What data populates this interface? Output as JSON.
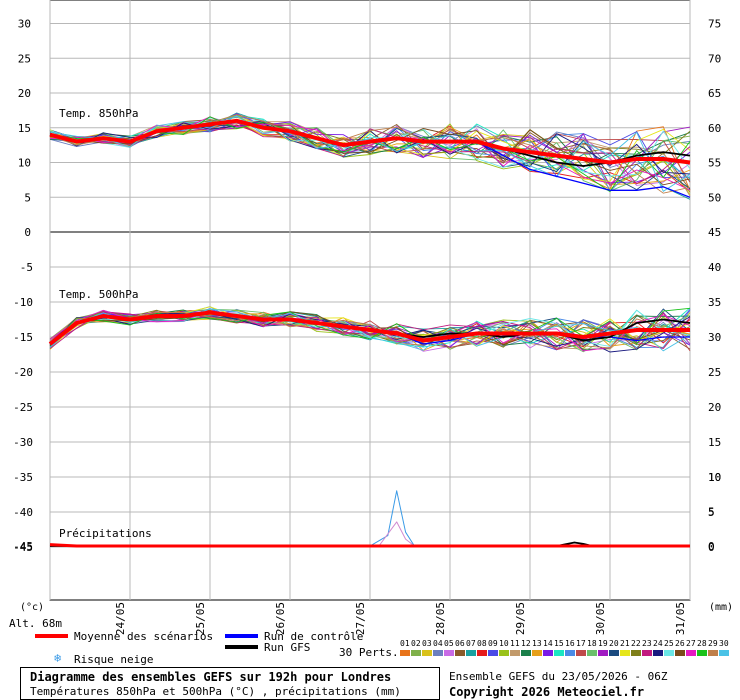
{
  "chart_data": {
    "type": "line",
    "x_dates": [
      "24/05",
      "25/05",
      "26/05",
      "27/05",
      "28/05",
      "29/05",
      "30/05",
      "31/05"
    ],
    "panels": [
      {
        "label": "Temp. 850hPa",
        "left_ticks": [
          "30",
          "25",
          "20",
          "15",
          "10",
          "5",
          "0"
        ],
        "right_ticks": [
          "75",
          "70",
          "65",
          "60",
          "55",
          "50",
          "45"
        ],
        "ylim": [
          0,
          33
        ],
        "mean": [
          [
            0,
            14
          ],
          [
            3,
            13
          ],
          [
            6,
            13.5
          ],
          [
            9,
            13
          ],
          [
            12,
            14.5
          ],
          [
            15,
            15
          ],
          [
            18,
            15.5
          ],
          [
            21,
            16
          ],
          [
            24,
            15
          ],
          [
            27,
            14.5
          ],
          [
            30,
            13.5
          ],
          [
            33,
            12.5
          ],
          [
            36,
            13
          ],
          [
            39,
            13.5
          ],
          [
            42,
            13
          ],
          [
            45,
            13
          ],
          [
            48,
            13
          ],
          [
            51,
            12
          ],
          [
            54,
            11.5
          ],
          [
            57,
            11
          ],
          [
            60,
            10.5
          ],
          [
            63,
            10
          ],
          [
            66,
            10.5
          ],
          [
            69,
            10.5
          ],
          [
            72,
            10
          ]
        ],
        "control": [
          [
            0,
            14
          ],
          [
            3,
            13
          ],
          [
            6,
            13.5
          ],
          [
            9,
            13
          ],
          [
            12,
            14.5
          ],
          [
            15,
            15
          ],
          [
            18,
            15.5
          ],
          [
            21,
            16
          ],
          [
            24,
            15
          ],
          [
            27,
            14.5
          ],
          [
            30,
            13.5
          ],
          [
            33,
            12.5
          ],
          [
            36,
            13
          ],
          [
            39,
            13.5
          ],
          [
            42,
            13
          ],
          [
            45,
            13
          ],
          [
            48,
            13
          ],
          [
            51,
            11
          ],
          [
            54,
            9
          ],
          [
            57,
            8
          ],
          [
            60,
            7
          ],
          [
            63,
            6
          ],
          [
            66,
            6
          ],
          [
            69,
            6.5
          ],
          [
            72,
            5
          ]
        ],
        "gfs": [
          [
            0,
            14
          ],
          [
            3,
            13
          ],
          [
            6,
            13.5
          ],
          [
            9,
            13
          ],
          [
            12,
            14.5
          ],
          [
            15,
            15
          ],
          [
            18,
            15.5
          ],
          [
            21,
            16
          ],
          [
            24,
            15
          ],
          [
            27,
            14.5
          ],
          [
            30,
            13.5
          ],
          [
            33,
            12.5
          ],
          [
            36,
            13
          ],
          [
            39,
            13.5
          ],
          [
            42,
            13
          ],
          [
            45,
            13
          ],
          [
            48,
            13
          ],
          [
            51,
            12
          ],
          [
            54,
            11
          ],
          [
            57,
            10
          ],
          [
            60,
            9.5
          ],
          [
            63,
            10
          ],
          [
            66,
            11
          ],
          [
            69,
            11.5
          ],
          [
            72,
            11
          ]
        ]
      },
      {
        "label": "Temp. 500hPa",
        "left_ticks": [
          "-5",
          "-10",
          "-15",
          "-20",
          "-25",
          "-30",
          "-35",
          "-40",
          "-45"
        ],
        "right_ticks": [
          "40",
          "35",
          "30",
          "25",
          "20",
          "15",
          "10",
          "5",
          "0"
        ],
        "ylim": [
          -46,
          0
        ],
        "mean": [
          [
            0,
            -16
          ],
          [
            3,
            -13
          ],
          [
            6,
            -12
          ],
          [
            9,
            -12.5
          ],
          [
            12,
            -12
          ],
          [
            15,
            -12
          ],
          [
            18,
            -11.5
          ],
          [
            21,
            -12
          ],
          [
            24,
            -12.5
          ],
          [
            27,
            -12.5
          ],
          [
            30,
            -13
          ],
          [
            33,
            -13.5
          ],
          [
            36,
            -14
          ],
          [
            39,
            -14.5
          ],
          [
            42,
            -15.5
          ],
          [
            45,
            -15
          ],
          [
            48,
            -14.5
          ],
          [
            51,
            -14.5
          ],
          [
            54,
            -14.5
          ],
          [
            57,
            -14.5
          ],
          [
            60,
            -15
          ],
          [
            63,
            -14.5
          ],
          [
            66,
            -14
          ],
          [
            69,
            -14
          ],
          [
            72,
            -14
          ]
        ],
        "control": [
          [
            0,
            -16
          ],
          [
            3,
            -13
          ],
          [
            6,
            -12
          ],
          [
            9,
            -12.5
          ],
          [
            12,
            -12
          ],
          [
            15,
            -12
          ],
          [
            18,
            -11.5
          ],
          [
            21,
            -12
          ],
          [
            24,
            -12.5
          ],
          [
            27,
            -12.5
          ],
          [
            30,
            -13
          ],
          [
            33,
            -13.5
          ],
          [
            36,
            -14
          ],
          [
            39,
            -14.5
          ],
          [
            42,
            -16
          ],
          [
            45,
            -15.5
          ],
          [
            48,
            -14.5
          ],
          [
            51,
            -14.5
          ],
          [
            54,
            -14.5
          ],
          [
            57,
            -14.5
          ],
          [
            60,
            -15
          ],
          [
            63,
            -15
          ],
          [
            66,
            -15.5
          ],
          [
            69,
            -15
          ],
          [
            72,
            -15
          ]
        ],
        "gfs": [
          [
            0,
            -16
          ],
          [
            3,
            -13
          ],
          [
            6,
            -12
          ],
          [
            9,
            -12.5
          ],
          [
            12,
            -12
          ],
          [
            15,
            -12
          ],
          [
            18,
            -11.5
          ],
          [
            21,
            -12
          ],
          [
            24,
            -12.5
          ],
          [
            27,
            -12.5
          ],
          [
            30,
            -13
          ],
          [
            33,
            -13.5
          ],
          [
            36,
            -14
          ],
          [
            39,
            -14.5
          ],
          [
            42,
            -15
          ],
          [
            45,
            -14.5
          ],
          [
            48,
            -14.5
          ],
          [
            51,
            -15
          ],
          [
            54,
            -14.5
          ],
          [
            57,
            -14.5
          ],
          [
            60,
            -15.5
          ],
          [
            63,
            -15
          ],
          [
            66,
            -13
          ],
          [
            69,
            -12.5
          ],
          [
            72,
            -13
          ]
        ]
      }
    ],
    "precip": {
      "label": "Précipitations",
      "right_ticks": [
        "10",
        "5",
        "0"
      ],
      "left_tick": "-45",
      "ylim": [
        0,
        11
      ],
      "mean": [
        [
          0,
          0.2
        ],
        [
          3,
          0
        ],
        [
          60,
          0
        ],
        [
          72,
          0
        ]
      ],
      "spike_member": [
        [
          36,
          0
        ],
        [
          38,
          1.5
        ],
        [
          39,
          8
        ],
        [
          40,
          2
        ],
        [
          41,
          0
        ]
      ],
      "spike_member2": [
        [
          37,
          0
        ],
        [
          39,
          3.5
        ],
        [
          40,
          1
        ],
        [
          41,
          0
        ]
      ],
      "gfs": [
        [
          0,
          0
        ],
        [
          57,
          0
        ],
        [
          59,
          0.5
        ],
        [
          60,
          0.3
        ],
        [
          61,
          0
        ],
        [
          72,
          0
        ]
      ]
    },
    "members_count": 30,
    "member_colors": [
      "#e8741a",
      "#7fb04a",
      "#d9c21a",
      "#6b7fbf",
      "#c86be6",
      "#8a5a2a",
      "#1aa0a0",
      "#e61a1a",
      "#4a4ae6",
      "#9ac21a",
      "#c29a6b",
      "#1a7f4a",
      "#e6a01a",
      "#7a1ae6",
      "#1ae6c2",
      "#4a8ae6",
      "#bf4a4a",
      "#6bbf6b",
      "#a01ac2",
      "#1a4a7f",
      "#e6e61a",
      "#7f7f1a",
      "#c21a7f",
      "#1a1a7f",
      "#6be6e6",
      "#7a4a1a",
      "#e61ac2",
      "#1ac21a",
      "#bf7f4a",
      "#4ac2e6"
    ],
    "legend": {
      "mean": "Moyenne des scénarios",
      "control": "Run de contrôle",
      "gfs": "Run GFS",
      "snow": "Risque neige",
      "perts": "30 Perts.",
      "member_numbers": [
        "01",
        "02",
        "03",
        "04",
        "05",
        "06",
        "07",
        "08",
        "09",
        "10",
        "11",
        "12",
        "13",
        "14",
        "15",
        "16",
        "17",
        "18",
        "19",
        "20",
        "21",
        "22",
        "23",
        "24",
        "25",
        "26",
        "27",
        "28",
        "29",
        "30"
      ]
    },
    "units_left": "(°c)",
    "units_right": "(mm)",
    "alt": "Alt. 68m",
    "colors": {
      "mean": "#ff0000",
      "control": "#0000ff",
      "gfs": "#000000",
      "grid": "#b8b8b8"
    }
  },
  "footer": {
    "title": "Diagramme des ensembles GEFS sur 192h pour Londres",
    "subtitle": "Températures 850hPa et 500hPa (°C) , précipitations (mm)",
    "run": "Ensemble GEFS du 23/05/2026 - 06Z",
    "copyright": "Copyright 2026 Meteociel.fr"
  }
}
